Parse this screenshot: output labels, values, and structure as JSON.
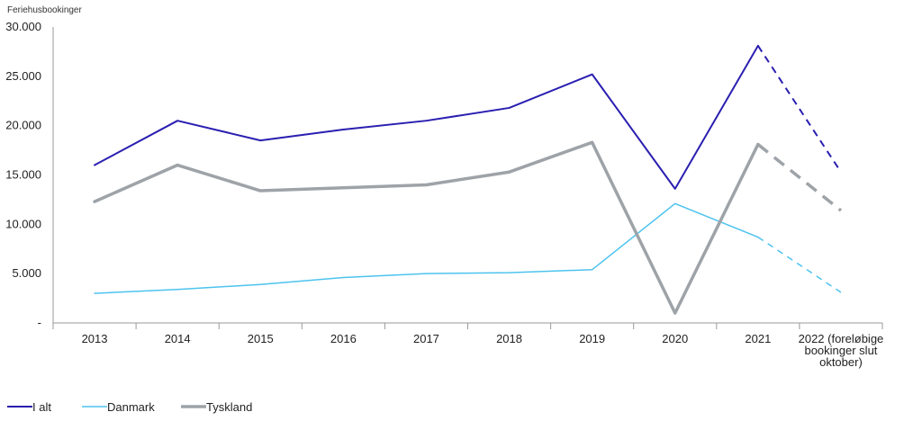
{
  "chart_data": {
    "type": "line",
    "ylabel": "Feriehusbookinger",
    "categories": [
      "2013",
      "2014",
      "2015",
      "2016",
      "2017",
      "2018",
      "2019",
      "2020",
      "2021",
      "2022 (foreløbige bookinger slut oktober)"
    ],
    "category_lines": [
      [
        "2013"
      ],
      [
        "2014"
      ],
      [
        "2015"
      ],
      [
        "2016"
      ],
      [
        "2017"
      ],
      [
        "2018"
      ],
      [
        "2019"
      ],
      [
        "2020"
      ],
      [
        "2021"
      ],
      [
        "2022 (foreløbige",
        "bookinger slut",
        "oktober)"
      ]
    ],
    "ylim": [
      0,
      30000
    ],
    "y_ticks": [
      0,
      5000,
      10000,
      15000,
      20000,
      25000,
      30000
    ],
    "y_tick_labels": [
      "-",
      "5.000",
      "10.000",
      "15.000",
      "20.000",
      "25.000",
      "30.000"
    ],
    "dashed_from_index": 8,
    "legend_position": "bottom-left",
    "series": [
      {
        "name": "I alt",
        "color": "#2a1fb0",
        "width": 2,
        "values": [
          16000,
          20500,
          18500,
          19600,
          20500,
          21800,
          25200,
          13600,
          28100,
          15300
        ]
      },
      {
        "name": "Danmark",
        "color": "#4dc3ee",
        "width": 1.5,
        "values": [
          3000,
          3400,
          3900,
          4600,
          5000,
          5100,
          5400,
          12100,
          8700,
          3100
        ]
      },
      {
        "name": "Tyskland",
        "color": "#9ea3a8",
        "width": 3.5,
        "values": [
          12300,
          16000,
          13400,
          13700,
          14000,
          15300,
          18300,
          1000,
          18100,
          11400
        ]
      }
    ]
  }
}
